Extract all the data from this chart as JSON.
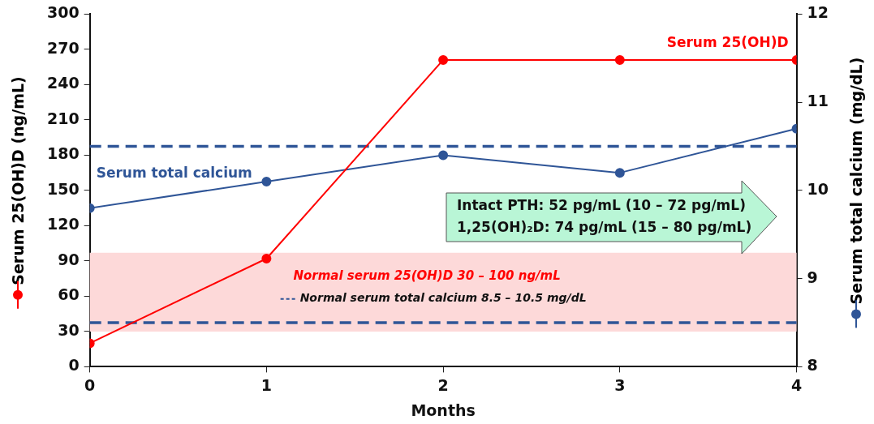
{
  "chart_data": {
    "type": "line",
    "xlabel": "Months",
    "ylabel": "Serum 25(OH)D (ng/mL)",
    "y2label": "Serum total calcium (mg/dL)",
    "x": [
      0,
      1,
      2,
      3,
      4
    ],
    "xlim": [
      0,
      4
    ],
    "xticks": [
      0,
      1,
      2,
      3,
      4
    ],
    "ylim": [
      0,
      300
    ],
    "yticks": [
      0,
      30,
      60,
      90,
      120,
      150,
      180,
      210,
      240,
      270,
      300
    ],
    "y2lim": [
      8,
      12
    ],
    "y2ticks": [
      8,
      9,
      10,
      11,
      12
    ],
    "series": [
      {
        "name": "Serum 25(OH)D",
        "color": "#ff0000",
        "values": [
          20,
          92,
          261,
          261,
          261
        ]
      },
      {
        "name": "Serum total calcium",
        "color": "#2f5597",
        "values": [
          9.8,
          10.1,
          10.4,
          10.2,
          10.7
        ],
        "axis": "y2"
      }
    ],
    "bands": [
      {
        "axis": "y",
        "from": 30,
        "to": 97,
        "label": "Normal serum 25(OH)D 30 – 100 ng/mL",
        "color": "#fdd9d9"
      }
    ],
    "ref_lines": [
      {
        "axis": "y2",
        "value": 10.5,
        "label": "Normal serum total calcium 8.5 – 10.5 mg/dL",
        "color": "#2f5597",
        "line_style": "dashed"
      },
      {
        "axis": "y2",
        "value": 8.5,
        "color": "#2f5597",
        "line_style": "dashed"
      }
    ],
    "annotations": [
      "Intact PTH: 52 pg/mL (10 – 72 pg/mL)",
      "1,25(OH)₂D: 74 pg/mL (15 – 80 pg/mL)"
    ],
    "marker": "circle",
    "line_style": "solid",
    "grid": false,
    "legend": "bottom"
  }
}
